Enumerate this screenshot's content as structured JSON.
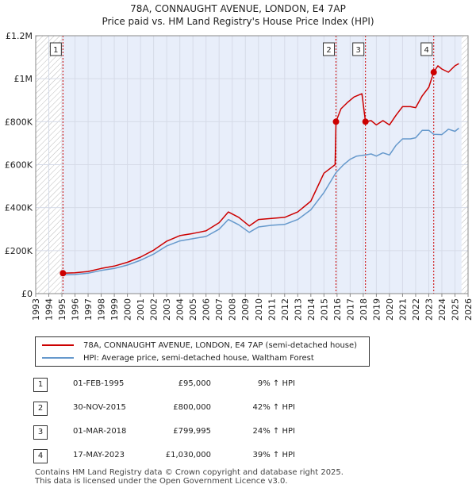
{
  "header": {
    "title_line1": "78A, CONNAUGHT AVENUE, LONDON, E4 7AP",
    "title_line2": "Price paid vs. HM Land Registry's House Price Index (HPI)"
  },
  "legend": {
    "property_label": "78A, CONNAUGHT AVENUE, LONDON, E4 7AP (semi-detached house)",
    "hpi_label": "HPI: Average price, semi-detached house, Waltham Forest"
  },
  "transactions": [
    {
      "num": "1",
      "date": "01-FEB-1995",
      "price": "£95,000",
      "hpi": "9% ↑ HPI"
    },
    {
      "num": "2",
      "date": "30-NOV-2015",
      "price": "£800,000",
      "hpi": "42% ↑ HPI"
    },
    {
      "num": "3",
      "date": "01-MAR-2018",
      "price": "£799,995",
      "hpi": "24% ↑ HPI"
    },
    {
      "num": "4",
      "date": "17-MAY-2023",
      "price": "£1,030,000",
      "hpi": "39% ↑ HPI"
    }
  ],
  "footer": {
    "line1": "Contains HM Land Registry data © Crown copyright and database right 2025.",
    "line2": "This data is licensed under the Open Government Licence v3.0."
  },
  "colors": {
    "property": "#cc0000",
    "hpi": "#6699cc",
    "shade": "#e8eefa",
    "hatch": "#bbbbbb",
    "grid": "#ffffff",
    "vline": "#cc0000"
  },
  "chart_data": {
    "type": "line",
    "xlabel": "",
    "ylabel": "",
    "xlim": [
      1993,
      2026
    ],
    "ylim": [
      0,
      1200000
    ],
    "x_ticks": [
      "1993",
      "1994",
      "1995",
      "1996",
      "1997",
      "1998",
      "1999",
      "2000",
      "2001",
      "2002",
      "2003",
      "2004",
      "2005",
      "2006",
      "2007",
      "2008",
      "2009",
      "2010",
      "2011",
      "2012",
      "2013",
      "2014",
      "2015",
      "2016",
      "2017",
      "2018",
      "2019",
      "2020",
      "2021",
      "2022",
      "2023",
      "2024",
      "2025",
      "2026"
    ],
    "y_ticks": [
      {
        "value": 0,
        "label": "£0"
      },
      {
        "value": 200000,
        "label": "£200K"
      },
      {
        "value": 400000,
        "label": "£400K"
      },
      {
        "value": 600000,
        "label": "£600K"
      },
      {
        "value": 800000,
        "label": "£800K"
      },
      {
        "value": 1000000,
        "label": "£1M"
      },
      {
        "value": 1200000,
        "label": "£1.2M"
      }
    ],
    "shaded_range": [
      1995.08,
      2025.5
    ],
    "hatch_ranges": [
      [
        1993,
        1995.08
      ],
      [
        2025.5,
        2026
      ]
    ],
    "series": [
      {
        "name": "78A, CONNAUGHT AVENUE, LONDON, E4 7AP (semi-detached house)",
        "x": [
          1995.08,
          1996,
          1997,
          1998,
          1999,
          2000,
          2001,
          2002,
          2003,
          2004,
          2005,
          2006,
          2007,
          2007.7,
          2008.5,
          2009.3,
          2010,
          2011,
          2012,
          2013,
          2014,
          2015,
          2015.85,
          2015.92,
          2016.3,
          2016.8,
          2017.3,
          2017.9,
          2018.17,
          2018.6,
          2019,
          2019.5,
          2020,
          2020.5,
          2021,
          2021.6,
          2022,
          2022.5,
          2023,
          2023.38,
          2023.7,
          2024,
          2024.5,
          2025,
          2025.3
        ],
        "y": [
          95000,
          97000,
          103000,
          117000,
          128000,
          146000,
          170000,
          202000,
          244000,
          270000,
          280000,
          292000,
          330000,
          380000,
          355000,
          315000,
          345000,
          350000,
          355000,
          380000,
          430000,
          560000,
          600000,
          800000,
          860000,
          890000,
          915000,
          930000,
          799995,
          805000,
          785000,
          805000,
          785000,
          830000,
          870000,
          870000,
          865000,
          920000,
          960000,
          1030000,
          1060000,
          1045000,
          1030000,
          1060000,
          1070000
        ]
      },
      {
        "name": "HPI: Average price, semi-detached house, Waltham Forest",
        "x": [
          1995.08,
          1996,
          1997,
          1998,
          1999,
          2000,
          2001,
          2002,
          2003,
          2004,
          2005,
          2006,
          2007,
          2007.7,
          2008.5,
          2009.3,
          2010,
          2011,
          2012,
          2013,
          2014,
          2015,
          2015.92,
          2016.5,
          2017,
          2017.5,
          2018.17,
          2018.6,
          2019,
          2019.5,
          2020,
          2020.5,
          2021,
          2021.6,
          2022,
          2022.5,
          2023,
          2023.38,
          2024,
          2024.5,
          2025,
          2025.3
        ],
        "y": [
          87000,
          89000,
          95000,
          108000,
          117000,
          133000,
          155000,
          184000,
          222000,
          245000,
          256000,
          266000,
          300000,
          345000,
          320000,
          285000,
          310000,
          318000,
          322000,
          345000,
          390000,
          470000,
          563000,
          600000,
          625000,
          640000,
          645000,
          650000,
          640000,
          655000,
          645000,
          690000,
          720000,
          720000,
          725000,
          760000,
          760000,
          741000,
          740000,
          765000,
          755000,
          770000
        ]
      }
    ],
    "markers": [
      {
        "label": "1",
        "x": 1995.08,
        "y": 95000
      },
      {
        "label": "2",
        "x": 2015.92,
        "y": 800000
      },
      {
        "label": "3",
        "x": 2018.17,
        "y": 799995
      },
      {
        "label": "4",
        "x": 2023.38,
        "y": 1030000
      }
    ]
  }
}
